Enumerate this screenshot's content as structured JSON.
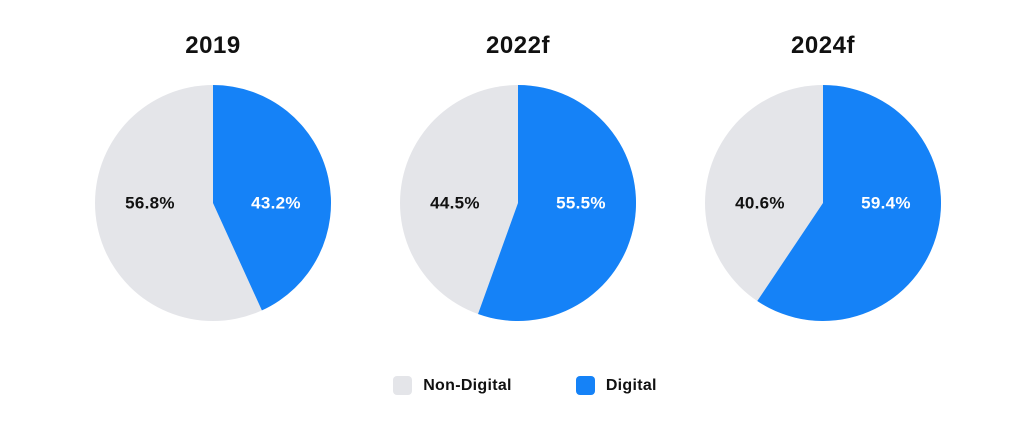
{
  "background": "#ffffff",
  "colors": {
    "digital": "#1582f7",
    "non_digital": "#e4e5e9",
    "text_dark": "#111111",
    "label_on_blue": "#ffffff"
  },
  "legend": {
    "items": [
      {
        "label": "Non-Digital",
        "color_key": "non_digital"
      },
      {
        "label": "Digital",
        "color_key": "digital"
      }
    ]
  },
  "chart_data": [
    {
      "type": "pie",
      "title": "2019",
      "categories": [
        "Non-Digital",
        "Digital"
      ],
      "values": [
        56.8,
        43.2
      ],
      "labels": [
        "56.8%",
        "43.2%"
      ],
      "start_angle_deg": 0,
      "direction": "clockwise",
      "legend_position": "bottom-shared"
    },
    {
      "type": "pie",
      "title": "2022f",
      "categories": [
        "Non-Digital",
        "Digital"
      ],
      "values": [
        44.5,
        55.5
      ],
      "labels": [
        "44.5%",
        "55.5%"
      ],
      "start_angle_deg": 0,
      "direction": "clockwise",
      "legend_position": "bottom-shared"
    },
    {
      "type": "pie",
      "title": "2024f",
      "categories": [
        "Non-Digital",
        "Digital"
      ],
      "values": [
        40.6,
        59.4
      ],
      "labels": [
        "40.6%",
        "59.4%"
      ],
      "start_angle_deg": 0,
      "direction": "clockwise",
      "legend_position": "bottom-shared"
    }
  ]
}
